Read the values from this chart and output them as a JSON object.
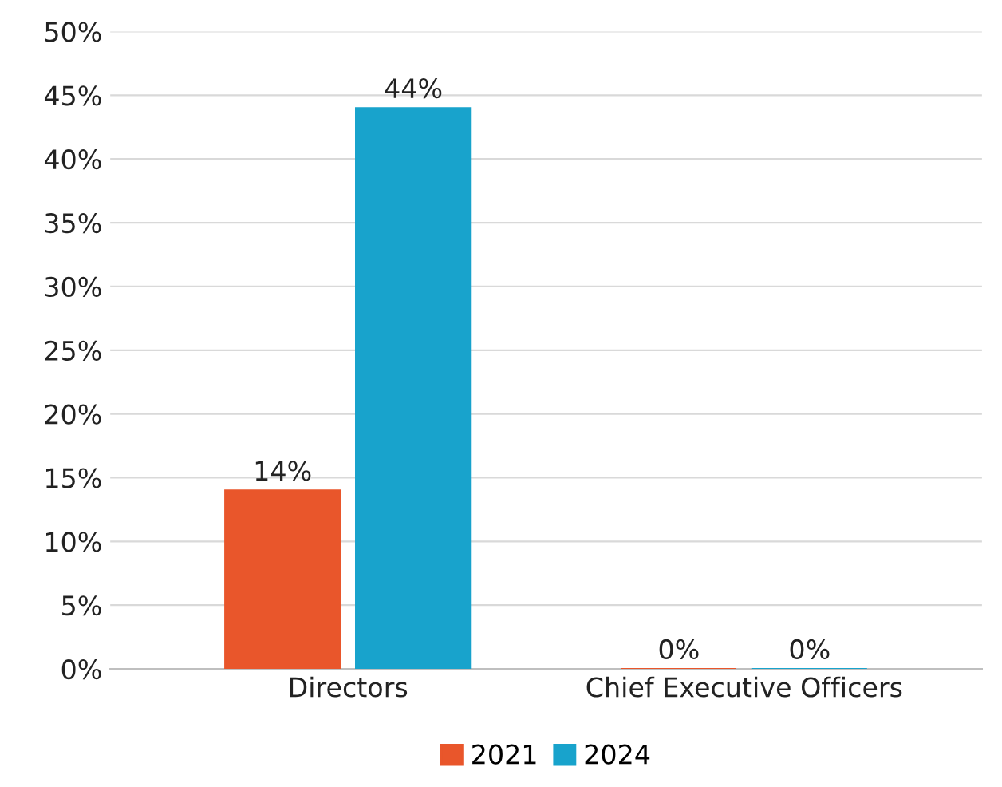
{
  "chart_data": {
    "type": "bar",
    "categories": [
      "Directors",
      "Chief Executive Officers"
    ],
    "series": [
      {
        "name": "2021",
        "color": "#e9562b",
        "values": [
          14,
          0
        ],
        "value_labels": [
          "14%",
          "0%"
        ]
      },
      {
        "name": "2024",
        "color": "#18a3cc",
        "values": [
          44,
          0
        ],
        "value_labels": [
          "44%",
          "0%"
        ]
      }
    ],
    "ylim": [
      0,
      50
    ],
    "yticks": [
      {
        "value": 0,
        "label": "0%"
      },
      {
        "value": 5,
        "label": "5%"
      },
      {
        "value": 10,
        "label": "10%"
      },
      {
        "value": 15,
        "label": "15%"
      },
      {
        "value": 20,
        "label": "20%"
      },
      {
        "value": 25,
        "label": "25%"
      },
      {
        "value": 30,
        "label": "30%"
      },
      {
        "value": 35,
        "label": "35%"
      },
      {
        "value": 40,
        "label": "40%"
      },
      {
        "value": 45,
        "label": "45%"
      },
      {
        "value": 50,
        "label": "50%"
      }
    ],
    "grid": "y",
    "legend": "bottom"
  }
}
